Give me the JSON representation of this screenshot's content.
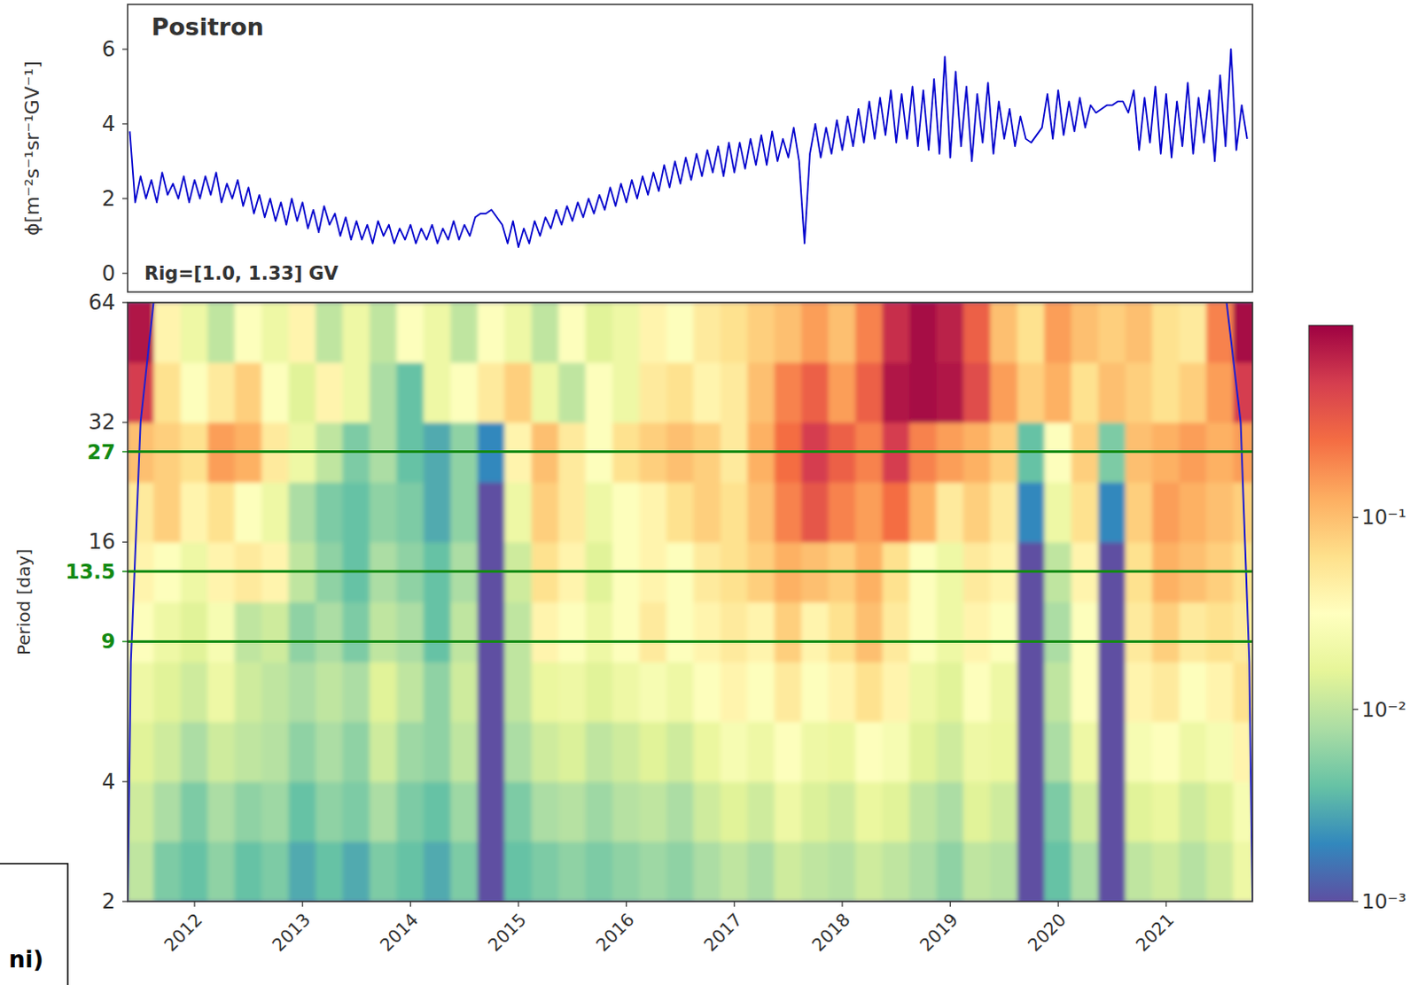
{
  "chart_data": [
    {
      "type": "line",
      "title": "Positron",
      "annotations": [
        "Rig=[1.0, 1.33] GV"
      ],
      "y_label": "ϕ[m⁻²s⁻¹sr⁻¹GV⁻¹]",
      "xlim": [
        2011.38,
        2021.8
      ],
      "ylim": [
        -0.5,
        7.2
      ],
      "yticks": [
        0,
        2,
        4,
        6
      ],
      "tick_labels": "y",
      "x": [
        2011.4,
        2011.45,
        2011.5,
        2011.55,
        2011.6,
        2011.65,
        2011.7,
        2011.75,
        2011.8,
        2011.85,
        2011.9,
        2011.95,
        2012,
        2012.05,
        2012.1,
        2012.15,
        2012.2,
        2012.25,
        2012.3,
        2012.35,
        2012.4,
        2012.45,
        2012.5,
        2012.55,
        2012.6,
        2012.65,
        2012.7,
        2012.75,
        2012.8,
        2012.85,
        2012.9,
        2012.95,
        2013,
        2013.05,
        2013.1,
        2013.15,
        2013.2,
        2013.25,
        2013.3,
        2013.35,
        2013.4,
        2013.45,
        2013.5,
        2013.55,
        2013.6,
        2013.65,
        2013.7,
        2013.75,
        2013.8,
        2013.85,
        2013.9,
        2013.95,
        2014,
        2014.05,
        2014.1,
        2014.15,
        2014.2,
        2014.25,
        2014.3,
        2014.35,
        2014.4,
        2014.45,
        2014.5,
        2014.55,
        2014.6,
        2014.65,
        2014.7,
        2014.75,
        2014.8,
        2014.85,
        2014.9,
        2014.95,
        2015,
        2015.05,
        2015.1,
        2015.15,
        2015.2,
        2015.25,
        2015.3,
        2015.35,
        2015.4,
        2015.45,
        2015.5,
        2015.55,
        2015.6,
        2015.65,
        2015.7,
        2015.75,
        2015.8,
        2015.85,
        2015.9,
        2015.95,
        2016,
        2016.05,
        2016.1,
        2016.15,
        2016.2,
        2016.25,
        2016.3,
        2016.35,
        2016.4,
        2016.45,
        2016.5,
        2016.55,
        2016.6,
        2016.65,
        2016.7,
        2016.75,
        2016.8,
        2016.85,
        2016.9,
        2016.95,
        2017,
        2017.05,
        2017.1,
        2017.15,
        2017.2,
        2017.25,
        2017.3,
        2017.35,
        2017.4,
        2017.45,
        2017.5,
        2017.55,
        2017.6,
        2017.65,
        2017.7,
        2017.75,
        2017.8,
        2017.85,
        2017.9,
        2017.95,
        2018,
        2018.05,
        2018.1,
        2018.15,
        2018.2,
        2018.25,
        2018.3,
        2018.35,
        2018.4,
        2018.45,
        2018.5,
        2018.55,
        2018.6,
        2018.65,
        2018.7,
        2018.75,
        2018.8,
        2018.85,
        2018.9,
        2018.95,
        2019,
        2019.05,
        2019.1,
        2019.15,
        2019.2,
        2019.25,
        2019.3,
        2019.35,
        2019.4,
        2019.45,
        2019.5,
        2019.55,
        2019.6,
        2019.65,
        2019.7,
        2019.75,
        2019.8,
        2019.85,
        2019.9,
        2019.95,
        2020,
        2020.05,
        2020.1,
        2020.15,
        2020.2,
        2020.25,
        2020.3,
        2020.35,
        2020.4,
        2020.45,
        2020.5,
        2020.55,
        2020.6,
        2020.65,
        2020.7,
        2020.75,
        2020.8,
        2020.85,
        2020.9,
        2020.95,
        2021,
        2021.05,
        2021.1,
        2021.15,
        2021.2,
        2021.25,
        2021.3,
        2021.35,
        2021.4,
        2021.45,
        2021.5,
        2021.55,
        2021.6,
        2021.65,
        2021.7,
        2021.75
      ],
      "series": [
        {
          "color": "#0000cd",
          "values": [
            3.8,
            1.9,
            2.6,
            2.0,
            2.5,
            1.9,
            2.7,
            2.1,
            2.4,
            2.0,
            2.6,
            1.9,
            2.5,
            2.0,
            2.6,
            2.1,
            2.7,
            1.9,
            2.4,
            2.0,
            2.5,
            1.8,
            2.3,
            1.6,
            2.1,
            1.5,
            2.0,
            1.4,
            1.9,
            1.3,
            2.0,
            1.4,
            1.9,
            1.2,
            1.7,
            1.1,
            1.8,
            1.3,
            1.6,
            1.0,
            1.5,
            0.9,
            1.4,
            0.9,
            1.3,
            0.8,
            1.4,
            1.0,
            1.3,
            0.8,
            1.2,
            0.9,
            1.3,
            0.8,
            1.2,
            0.9,
            1.3,
            0.8,
            1.2,
            0.9,
            1.4,
            0.9,
            1.3,
            1.0,
            1.5,
            1.6,
            1.6,
            1.7,
            1.5,
            1.3,
            0.8,
            1.4,
            0.7,
            1.2,
            0.8,
            1.4,
            1.0,
            1.5,
            1.2,
            1.7,
            1.3,
            1.8,
            1.4,
            1.9,
            1.5,
            2.0,
            1.6,
            2.1,
            1.7,
            2.3,
            1.8,
            2.4,
            1.9,
            2.5,
            2.0,
            2.6,
            2.1,
            2.7,
            2.2,
            2.9,
            2.3,
            3.0,
            2.4,
            3.1,
            2.5,
            3.2,
            2.6,
            3.3,
            2.7,
            3.4,
            2.6,
            3.5,
            2.7,
            3.5,
            2.8,
            3.6,
            2.9,
            3.7,
            2.9,
            3.8,
            3.0,
            3.6,
            3.1,
            3.9,
            3.0,
            0.8,
            3.2,
            4.0,
            3.1,
            3.9,
            3.2,
            4.1,
            3.3,
            4.2,
            3.4,
            4.4,
            3.5,
            4.6,
            3.6,
            4.7,
            3.7,
            4.9,
            3.5,
            4.8,
            3.6,
            5.0,
            3.4,
            4.9,
            3.3,
            5.2,
            3.2,
            5.8,
            3.1,
            5.4,
            3.4,
            5.0,
            3.0,
            4.8,
            3.5,
            5.1,
            3.2,
            4.6,
            3.6,
            4.4,
            3.4,
            4.2,
            3.6,
            3.5,
            3.7,
            3.9,
            4.8,
            3.6,
            4.9,
            3.7,
            4.6,
            3.8,
            4.7,
            3.9,
            4.5,
            4.3,
            4.4,
            4.5,
            4.5,
            4.6,
            4.6,
            4.3,
            4.9,
            3.3,
            4.7,
            3.5,
            5.0,
            3.2,
            4.8,
            3.1,
            4.6,
            3.4,
            5.1,
            3.2,
            4.7,
            3.5,
            4.9,
            3.0,
            5.3,
            3.4,
            6.0,
            3.3,
            4.5,
            3.6
          ]
        }
      ]
    },
    {
      "type": "heatmap",
      "y_label": "Period [day]",
      "annotations": [
        "ni)"
      ],
      "log": "y",
      "xlim": [
        2011.38,
        2021.8
      ],
      "ylim": [
        2,
        64
      ],
      "xticks": [
        2012,
        2013,
        2014,
        2015,
        2016,
        2017,
        2018,
        2019,
        2020,
        2021
      ],
      "yticks": [
        2,
        4,
        16,
        32,
        64
      ],
      "hlines": [
        {
          "value": 27,
          "color": "#138a13"
        },
        {
          "value": 13.5,
          "color": "#138a13"
        },
        {
          "value": 9,
          "color": "#138a13"
        }
      ],
      "x_edges": [
        2011.375,
        2011.625,
        2011.875,
        2012.125,
        2012.375,
        2012.625,
        2012.875,
        2013.125,
        2013.375,
        2013.625,
        2013.875,
        2014.125,
        2014.375,
        2014.625,
        2014.875,
        2015.125,
        2015.375,
        2015.625,
        2015.875,
        2016.125,
        2016.375,
        2016.625,
        2016.875,
        2017.125,
        2017.375,
        2017.625,
        2017.875,
        2018.125,
        2018.375,
        2018.625,
        2018.875,
        2019.125,
        2019.375,
        2019.625,
        2019.875,
        2020.125,
        2020.375,
        2020.625,
        2020.875,
        2021.125,
        2021.375,
        2021.625,
        2021.875
      ],
      "y_edges": [
        2,
        2.83,
        4,
        5.66,
        8,
        11.31,
        16,
        22.63,
        32,
        45.25,
        64
      ],
      "cells": [
        [
          0.01,
          0.005,
          0.004,
          0.006,
          0.004,
          0.005,
          0.003,
          0.004,
          0.003,
          0.005,
          0.004,
          0.003,
          0.005,
          0.001,
          0.004,
          0.005,
          0.006,
          0.005,
          0.006,
          0.007,
          0.006,
          0.008,
          0.01,
          0.008,
          0.012,
          0.01,
          0.009,
          0.012,
          0.01,
          0.008,
          0.006,
          0.01,
          0.009,
          0.001,
          0.004,
          0.008,
          0.001,
          0.01,
          0.012,
          0.009,
          0.012,
          0.02
        ],
        [
          0.012,
          0.008,
          0.005,
          0.008,
          0.006,
          0.007,
          0.004,
          0.006,
          0.005,
          0.008,
          0.005,
          0.004,
          0.007,
          0.001,
          0.005,
          0.008,
          0.009,
          0.007,
          0.009,
          0.01,
          0.008,
          0.012,
          0.015,
          0.012,
          0.02,
          0.014,
          0.012,
          0.018,
          0.015,
          0.01,
          0.008,
          0.015,
          0.012,
          0.001,
          0.005,
          0.012,
          0.001,
          0.015,
          0.018,
          0.012,
          0.015,
          0.025
        ],
        [
          0.015,
          0.012,
          0.008,
          0.012,
          0.01,
          0.009,
          0.006,
          0.008,
          0.006,
          0.012,
          0.007,
          0.006,
          0.01,
          0.001,
          0.008,
          0.012,
          0.014,
          0.01,
          0.012,
          0.015,
          0.012,
          0.018,
          0.025,
          0.02,
          0.03,
          0.02,
          0.018,
          0.03,
          0.025,
          0.015,
          0.012,
          0.02,
          0.018,
          0.001,
          0.008,
          0.02,
          0.001,
          0.025,
          0.03,
          0.02,
          0.025,
          0.04
        ],
        [
          0.02,
          0.015,
          0.012,
          0.02,
          0.012,
          0.01,
          0.008,
          0.01,
          0.008,
          0.015,
          0.01,
          0.006,
          0.012,
          0.001,
          0.01,
          0.018,
          0.02,
          0.015,
          0.02,
          0.025,
          0.02,
          0.03,
          0.04,
          0.03,
          0.05,
          0.03,
          0.04,
          0.06,
          0.04,
          0.02,
          0.015,
          0.03,
          0.02,
          0.001,
          0.01,
          0.03,
          0.001,
          0.04,
          0.05,
          0.03,
          0.04,
          0.06
        ],
        [
          0.03,
          0.02,
          0.015,
          0.025,
          0.01,
          0.012,
          0.006,
          0.008,
          0.005,
          0.01,
          0.008,
          0.004,
          0.01,
          0.001,
          0.01,
          0.04,
          0.03,
          0.02,
          0.03,
          0.05,
          0.03,
          0.04,
          0.05,
          0.04,
          0.08,
          0.04,
          0.06,
          0.1,
          0.05,
          0.03,
          0.02,
          0.04,
          0.03,
          0.001,
          0.008,
          0.03,
          0.001,
          0.05,
          0.08,
          0.05,
          0.06,
          0.05
        ],
        [
          0.04,
          0.03,
          0.02,
          0.04,
          0.05,
          0.04,
          0.01,
          0.006,
          0.004,
          0.008,
          0.006,
          0.004,
          0.008,
          0.001,
          0.012,
          0.06,
          0.04,
          0.015,
          0.03,
          0.04,
          0.03,
          0.05,
          0.06,
          0.08,
          0.12,
          0.1,
          0.08,
          0.12,
          0.06,
          0.03,
          0.02,
          0.05,
          0.04,
          0.001,
          0.01,
          0.04,
          0.001,
          0.06,
          0.12,
          0.1,
          0.08,
          0.06
        ],
        [
          0.05,
          0.08,
          0.04,
          0.06,
          0.03,
          0.02,
          0.008,
          0.005,
          0.004,
          0.006,
          0.005,
          0.003,
          0.006,
          0.001,
          0.02,
          0.08,
          0.05,
          0.02,
          0.03,
          0.04,
          0.06,
          0.08,
          0.06,
          0.1,
          0.2,
          0.35,
          0.2,
          0.15,
          0.25,
          0.12,
          0.05,
          0.08,
          0.05,
          0.002,
          0.02,
          0.06,
          0.002,
          0.08,
          0.15,
          0.12,
          0.1,
          0.08
        ],
        [
          0.1,
          0.08,
          0.06,
          0.15,
          0.12,
          0.05,
          0.02,
          0.01,
          0.005,
          0.008,
          0.004,
          0.003,
          0.006,
          0.002,
          0.04,
          0.1,
          0.05,
          0.03,
          0.06,
          0.08,
          0.1,
          0.08,
          0.05,
          0.12,
          0.25,
          0.5,
          0.3,
          0.2,
          0.5,
          0.2,
          0.15,
          0.12,
          0.08,
          0.004,
          0.03,
          0.08,
          0.005,
          0.1,
          0.12,
          0.15,
          0.12,
          0.15
        ],
        [
          0.5,
          0.06,
          0.03,
          0.05,
          0.08,
          0.03,
          0.015,
          0.04,
          0.02,
          0.008,
          0.004,
          0.02,
          0.03,
          0.05,
          0.08,
          0.02,
          0.01,
          0.03,
          0.02,
          0.05,
          0.06,
          0.04,
          0.05,
          0.1,
          0.2,
          0.3,
          0.15,
          0.3,
          0.8,
          0.9,
          0.8,
          0.4,
          0.15,
          0.08,
          0.12,
          0.06,
          0.1,
          0.08,
          0.06,
          0.08,
          0.15,
          0.5
        ],
        [
          0.8,
          0.04,
          0.02,
          0.01,
          0.03,
          0.02,
          0.04,
          0.01,
          0.02,
          0.01,
          0.03,
          0.02,
          0.01,
          0.03,
          0.02,
          0.01,
          0.03,
          0.015,
          0.02,
          0.04,
          0.03,
          0.05,
          0.06,
          0.08,
          0.1,
          0.15,
          0.1,
          0.2,
          0.6,
          0.9,
          0.7,
          0.3,
          0.1,
          0.06,
          0.15,
          0.1,
          0.08,
          0.1,
          0.06,
          0.05,
          0.2,
          0.9
        ]
      ],
      "colorbar": {
        "range": [
          0.001,
          1
        ],
        "ticks": [
          {
            "value": 0.1,
            "label": "10⁻¹"
          },
          {
            "value": 0.01,
            "label": "10⁻²"
          },
          {
            "value": 0.001,
            "label": "10⁻³"
          }
        ]
      },
      "coi": [
        {
          "color": "#1f1fd0",
          "x": [
            2011.38,
            2011.41,
            2011.5,
            2011.62
          ],
          "y": [
            2,
            8,
            32,
            64
          ]
        },
        {
          "color": "#1f1fd0",
          "x": [
            2021.8,
            2021.77,
            2021.69,
            2021.56
          ],
          "y": [
            2,
            8,
            32,
            64
          ]
        }
      ]
    }
  ]
}
